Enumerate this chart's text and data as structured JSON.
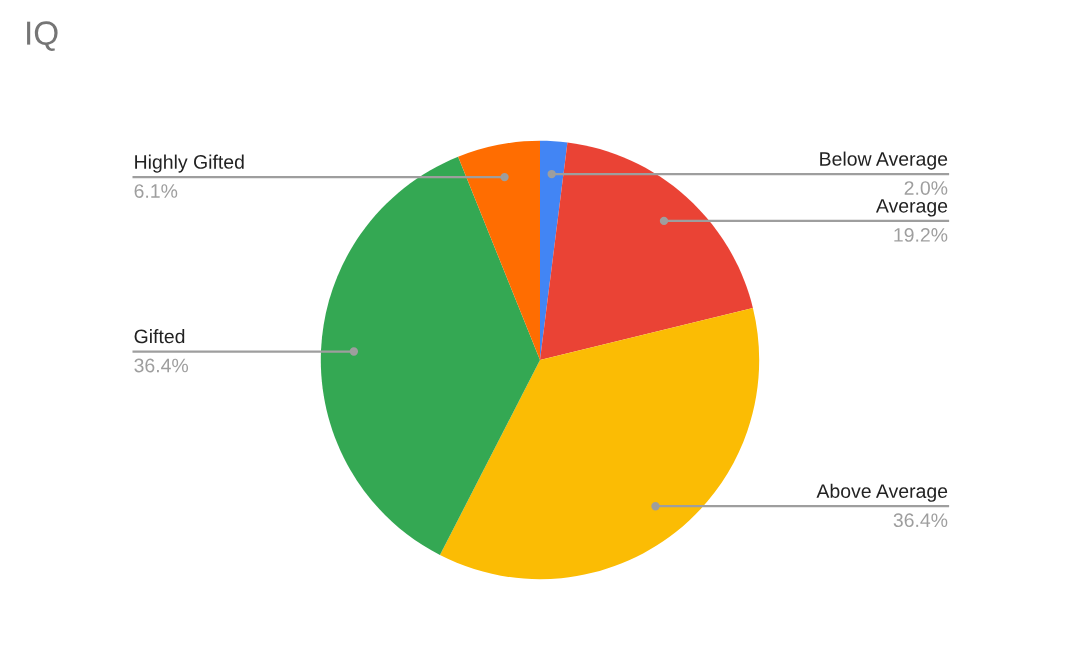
{
  "chart_data": {
    "type": "pie",
    "title": "IQ",
    "categories": [
      "Below Average",
      "Average",
      "Above Average",
      "Gifted",
      "Highly Gifted"
    ],
    "values": [
      2.0,
      19.2,
      36.4,
      36.4,
      6.1
    ],
    "value_labels": [
      "2.0%",
      "19.2%",
      "36.4%",
      "36.4%",
      "6.1%"
    ],
    "colors": [
      "#4285f4",
      "#ea4335",
      "#fbbc04",
      "#34a853",
      "#ff6d01"
    ],
    "legend": false
  }
}
